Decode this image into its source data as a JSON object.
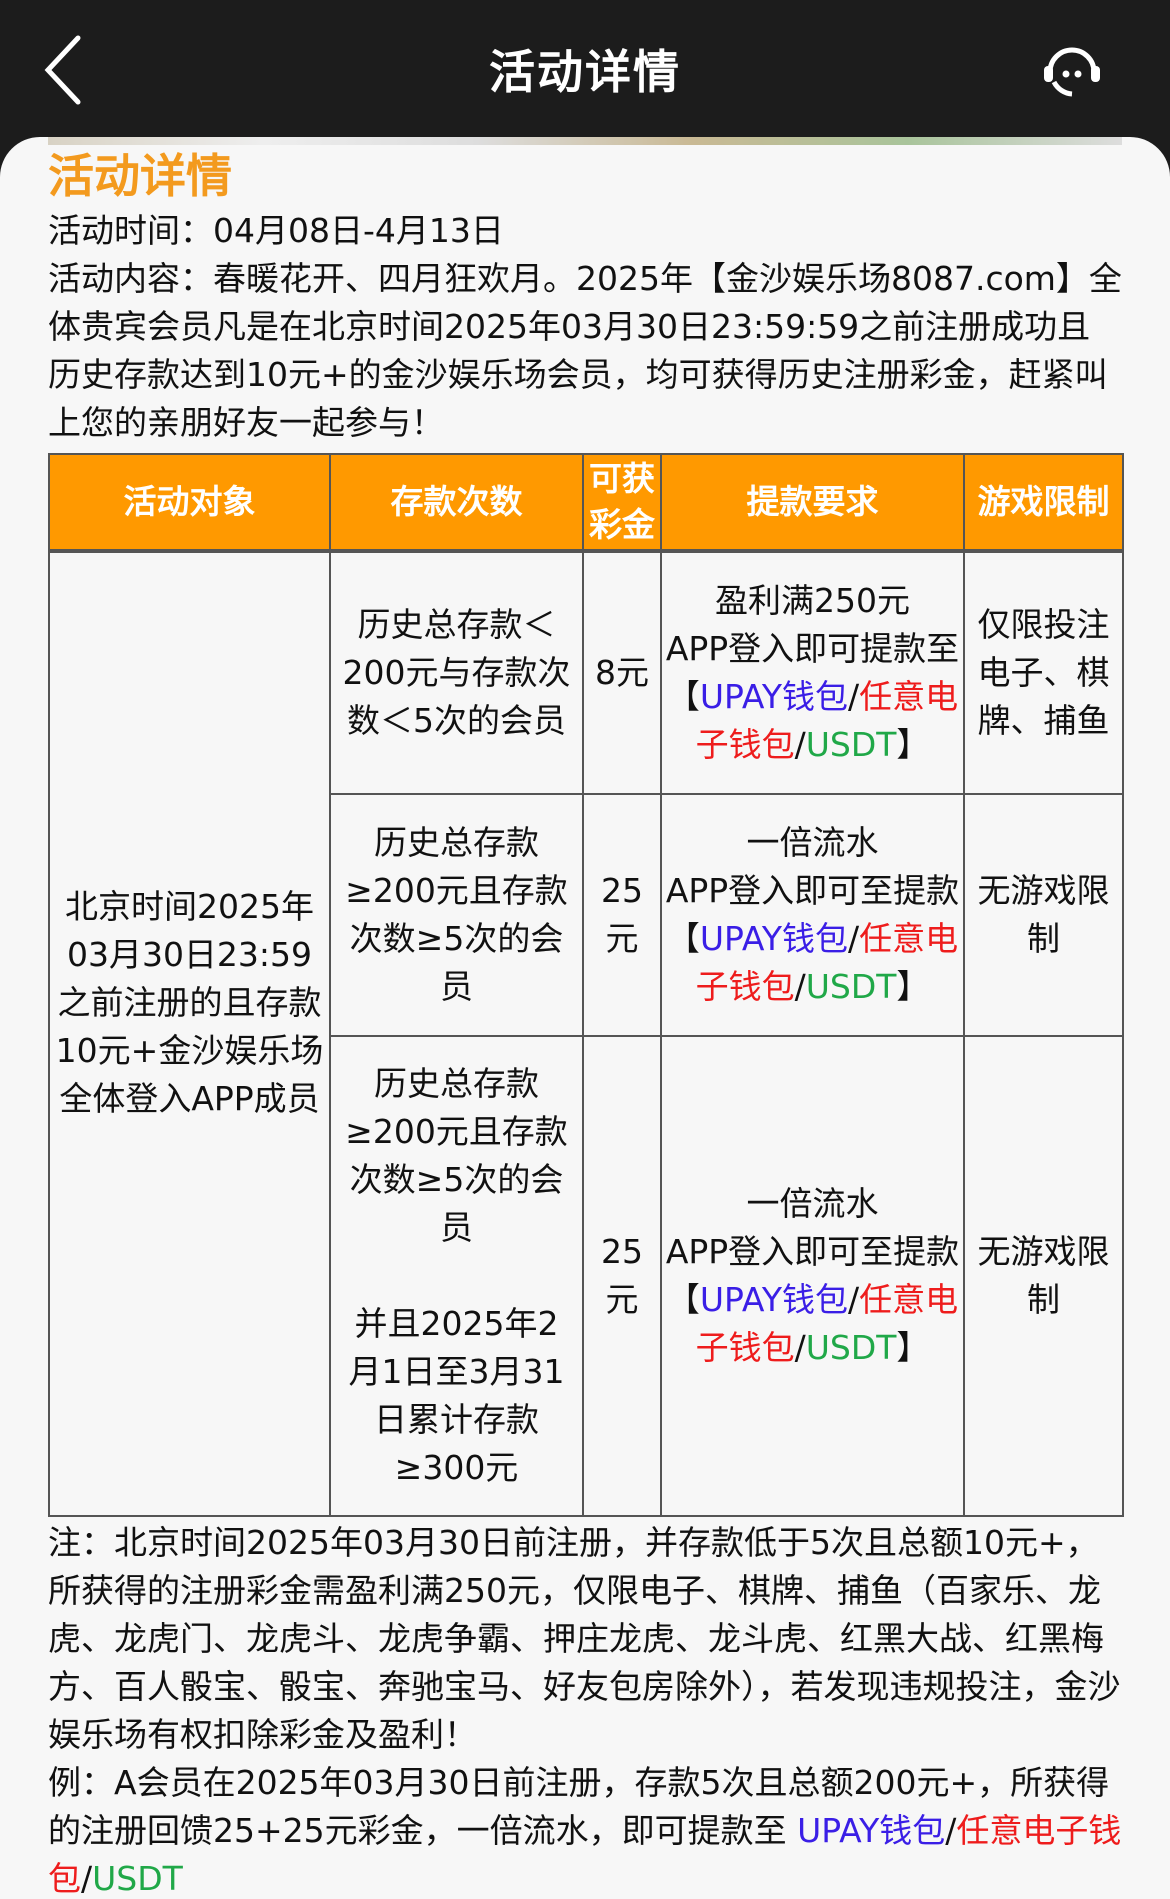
{
  "nav": {
    "title": "活动详情",
    "back_icon": "chevron-left-icon",
    "support_icon": "headset-icon"
  },
  "content": {
    "heading": "活动详情",
    "time": "活动时间：04月08日-4月13日",
    "desc": "活动内容：春暖花开、四月狂欢月。2025年【金沙娱乐场8087.com】全体贵宾会员凡是在北京时间2025年03月30日23:59:59之前注册成功且历史存款达到10元+的金沙娱乐场会员，均可获得历史注册彩金，赶紧叫上您的亲朋好友一起参与！"
  },
  "table": {
    "headers": [
      "活动对象",
      "存款次数",
      "可获彩金",
      "提款要求",
      "游戏限制"
    ],
    "target": "北京时间2025年03月30日23:59之前注册的且存款10元+金沙娱乐场全体登入APP成员",
    "rows": [
      {
        "deposit": "历史总存款＜200元与存款次数＜5次的会员",
        "bonus": "8元",
        "req_lines": [
          "盈利满250元",
          "APP登入即可提款至"
        ],
        "limit": "仅限投注电子、棋牌、捕鱼"
      },
      {
        "deposit": "历史总存款≥200元且存款次数≥5次的会员",
        "bonus": "25元",
        "req_lines": [
          "一倍流水",
          "APP登入即可至提款"
        ],
        "limit": "无游戏限制"
      },
      {
        "deposit": "历史总存款≥200元且存款次数≥5次的会员",
        "deposit_extra": "并且2025年2月1日至3月31日累计存款≥300元",
        "bonus": "25元",
        "req_lines": [
          "一倍流水",
          "APP登入即可至提款"
        ],
        "limit": "无游戏限制"
      }
    ],
    "wallet": {
      "open": "【",
      "upay": "UPAY钱包",
      "sep": "/",
      "any": "任意电子钱包",
      "usdt": "USDT",
      "close": "】"
    }
  },
  "notes": {
    "note": "注：北京时间2025年03月30日前注册，并存款低于5次且总额10元+，所获得的注册彩金需盈利满250元，仅限电子、棋牌、捕鱼（百家乐、龙虎、龙虎门、龙虎斗、龙虎争霸、押庄龙虎、龙斗虎、红黑大战、红黑梅方、百人骰宝、骰宝、奔驰宝马、好友包房除外），若发现违规投注，金沙娱乐场有权扣除彩金及盈利！",
    "example": "例：A会员在2025年03月30日前注册，存款5次且总额200元+，所获得的注册回馈25+25元彩金，一倍流水，即可提款至 ",
    "upay": "UPAY钱包",
    "sep": "/",
    "any": "任意电子钱包",
    "usdt": "USDT"
  },
  "colors": {
    "accent": "#ff9900",
    "upay": "#3a1ee6",
    "any": "#ee1c1c",
    "usdt": "#20a848"
  }
}
